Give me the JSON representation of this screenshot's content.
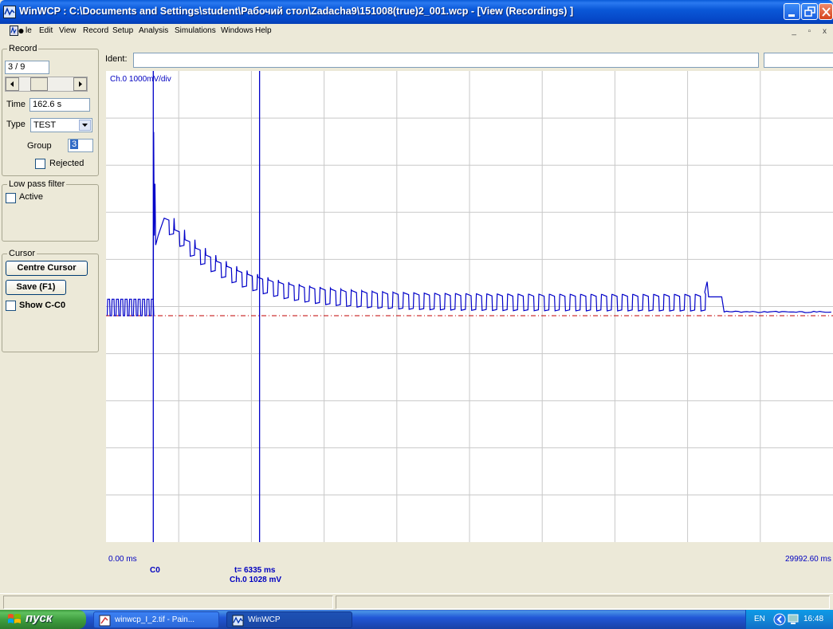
{
  "window": {
    "title": "WinWCP : C:\\Documents and Settings\\student\\Рабочий стол\\Zadacha9\\151008(true)2_001.wcp - [View (Recordings) ]",
    "icon": "winwcp-app-icon",
    "buttons": [
      "minimize-icon",
      "maximize-icon",
      "close-icon"
    ]
  },
  "menu": {
    "items": [
      "le",
      "Edit",
      "View",
      "Record",
      "Setup",
      "Analysis",
      "Simulations",
      "Windows",
      "Help"
    ],
    "mdi_buttons": "_ ▫ x"
  },
  "record_panel": {
    "group_label": "Record",
    "record_value": "3 / 9",
    "scroll_fraction": 0.3,
    "time_label": "Time",
    "time_value": "162.6 s",
    "type_label": "Type",
    "type_value": "TEST",
    "group_field_label": "Group",
    "group_value": "3",
    "rejected_label": "Rejected",
    "rejected_checked": false
  },
  "lowpass_panel": {
    "group_label": "Low pass filter",
    "active_label": "Active",
    "active_checked": false
  },
  "cursor_panel": {
    "group_label": "Cursor",
    "centre_button": "Centre Cursor",
    "save_button": "Save (F1)",
    "show_label": "Show C-C0",
    "show_checked": false
  },
  "ident": {
    "label": "Ident:",
    "value": ""
  },
  "plot": {
    "channel_label": "Ch.0 1000mV/div",
    "x_start_label": "0.00 ms",
    "x_end_label": "29992.60 ms",
    "c0_label": "C0",
    "readout_time": "t=  6335 ms",
    "readout_value": "Ch.0  1028 mV",
    "trace_color": "#0000c8",
    "baseline_color": "#c00000",
    "grid_color": "#c8c8c8"
  },
  "chart_data": {
    "type": "line",
    "title": "",
    "xlabel": "",
    "ylabel": "",
    "xlim": [
      0,
      29992.6
    ],
    "ylim": [
      -5000,
      5000
    ],
    "y_div_mV": 1000,
    "baseline_mV": 0,
    "cursor_c0_ms": 1950,
    "cursor_readout_ms": 6335,
    "readout_mV": 1028,
    "stim_start_ms": 1950,
    "peak_mV": 3900,
    "decay_start_mV": 2100,
    "plateau_mV": 450,
    "pulse_amplitude_mV": 350,
    "train_end_ms": 24800,
    "tail_mV": 80,
    "series": [
      {
        "values_description_points": [
          [
            0,
            0
          ],
          [
            1900,
            0
          ],
          [
            1950,
            3900
          ],
          [
            2200,
            2100
          ],
          [
            6335,
            1028
          ],
          [
            12000,
            500
          ],
          [
            24800,
            450
          ],
          [
            25500,
            200
          ],
          [
            29992,
            80
          ]
        ]
      }
    ]
  },
  "taskbar": {
    "start_label": "пуск",
    "tasks": [
      {
        "label": "winwcp_I_2.tif - Pain...",
        "icon": "paint-icon",
        "active": false
      },
      {
        "label": "WinWCP",
        "icon": "winwcp-icon",
        "active": true
      }
    ],
    "tray_lang": "EN",
    "tray_clock": "16:48"
  }
}
